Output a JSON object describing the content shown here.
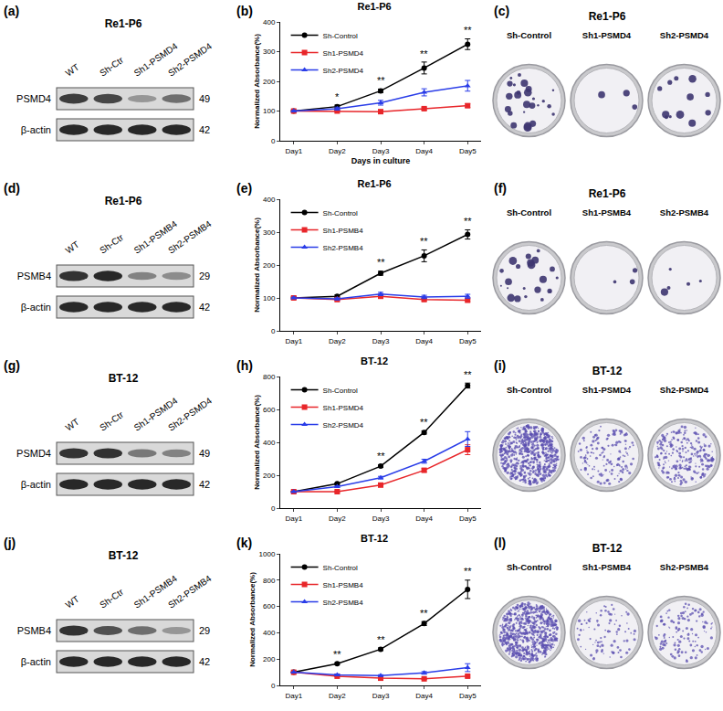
{
  "chart_data": [
    {
      "type": "line",
      "panel_label": "(b)",
      "title": "Re1-P6",
      "xlabel": "Days in culture",
      "ylabel": "Normalized Absorbance(%)",
      "categories": [
        "Day1",
        "Day2",
        "Day3",
        "Day4",
        "Day5"
      ],
      "series": [
        {
          "name": "Sh-Control",
          "color": "#000000",
          "marker": "circle",
          "values": [
            100,
            115,
            168,
            245,
            325
          ],
          "error": [
            3,
            5,
            6,
            20,
            18
          ]
        },
        {
          "name": "Sh1-PSMD4",
          "color": "#e8262a",
          "marker": "square",
          "values": [
            100,
            100,
            98,
            108,
            118
          ],
          "error": [
            2,
            3,
            4,
            5,
            6
          ]
        },
        {
          "name": "Sh2-PSMD4",
          "color": "#2a3de8",
          "marker": "triangle-up",
          "values": [
            100,
            108,
            128,
            163,
            185
          ],
          "error": [
            2,
            5,
            8,
            12,
            18
          ]
        }
      ],
      "annotations": [
        {
          "x": "Day2",
          "text": "*"
        },
        {
          "x": "Day3",
          "text": "**"
        },
        {
          "x": "Day4",
          "text": "**"
        },
        {
          "x": "Day5",
          "text": "**"
        }
      ],
      "ylim": [
        0,
        400
      ],
      "yticks": [
        0,
        100,
        200,
        300,
        400
      ],
      "grid": false,
      "legend": "top-left"
    },
    {
      "type": "line",
      "panel_label": "(e)",
      "title": "Re1-P6",
      "ylabel": "Normalized Absorbance(%)",
      "categories": [
        "Day1",
        "Day2",
        "Day3",
        "Day4",
        "Day5"
      ],
      "series": [
        {
          "name": "Sh-Control",
          "color": "#000000",
          "marker": "circle",
          "values": [
            100,
            105,
            175,
            228,
            293
          ],
          "error": [
            3,
            4,
            6,
            18,
            14
          ]
        },
        {
          "name": "Sh1-PSMB4",
          "color": "#e8262a",
          "marker": "square",
          "values": [
            100,
            95,
            105,
            95,
            93
          ],
          "error": [
            2,
            3,
            4,
            4,
            4
          ]
        },
        {
          "name": "Sh2-PSMB4",
          "color": "#2a3de8",
          "marker": "triangle-up",
          "values": [
            100,
            97,
            112,
            103,
            105
          ],
          "error": [
            2,
            3,
            5,
            5,
            6
          ]
        }
      ],
      "annotations": [
        {
          "x": "Day3",
          "text": "**"
        },
        {
          "x": "Day4",
          "text": "**"
        },
        {
          "x": "Day5",
          "text": "**"
        }
      ],
      "ylim": [
        0,
        400
      ],
      "yticks": [
        0,
        100,
        200,
        300,
        400
      ],
      "grid": false,
      "legend": "top-left"
    },
    {
      "type": "line",
      "panel_label": "(h)",
      "title": "BT-12",
      "ylabel": "Normalized Absorbance(%)",
      "categories": [
        "Day1",
        "Day2",
        "Day3",
        "Day4",
        "Day5"
      ],
      "series": [
        {
          "name": "Sh-Control",
          "color": "#000000",
          "marker": "circle",
          "values": [
            100,
            148,
            255,
            460,
            745
          ],
          "error": [
            3,
            5,
            8,
            10,
            15
          ]
        },
        {
          "name": "Sh1-PSMD4",
          "color": "#e8262a",
          "marker": "square",
          "values": [
            100,
            100,
            140,
            230,
            355
          ],
          "error": [
            2,
            4,
            6,
            10,
            30
          ]
        },
        {
          "name": "Sh2-PSMD4",
          "color": "#2a3de8",
          "marker": "triangle-up",
          "values": [
            100,
            130,
            185,
            285,
            420
          ],
          "error": [
            2,
            5,
            8,
            12,
            45
          ]
        }
      ],
      "annotations": [
        {
          "x": "Day3",
          "text": "**"
        },
        {
          "x": "Day4",
          "text": "**"
        },
        {
          "x": "Day5",
          "text": "**"
        }
      ],
      "ylim": [
        0,
        800
      ],
      "yticks": [
        0,
        200,
        400,
        600,
        800
      ],
      "grid": false,
      "legend": "top-left"
    },
    {
      "type": "line",
      "panel_label": "(k)",
      "title": "BT-12",
      "ylabel": "Normalized Absorbance(%)",
      "categories": [
        "Day1",
        "Day2",
        "Day3",
        "Day4",
        "Day5"
      ],
      "series": [
        {
          "name": "Sh-Control",
          "color": "#000000",
          "marker": "circle",
          "values": [
            100,
            165,
            275,
            470,
            730
          ],
          "error": [
            3,
            8,
            10,
            15,
            70
          ]
        },
        {
          "name": "Sh1-PSMB4",
          "color": "#e8262a",
          "marker": "square",
          "values": [
            100,
            70,
            55,
            50,
            70
          ],
          "error": [
            2,
            5,
            5,
            5,
            8
          ]
        },
        {
          "name": "Sh2-PSMB4",
          "color": "#2a3de8",
          "marker": "triangle-up",
          "values": [
            100,
            80,
            75,
            95,
            135
          ],
          "error": [
            2,
            6,
            6,
            10,
            30
          ]
        }
      ],
      "annotations": [
        {
          "x": "Day2",
          "text": "**"
        },
        {
          "x": "Day3",
          "text": "**"
        },
        {
          "x": "Day4",
          "text": "**"
        },
        {
          "x": "Day5",
          "text": "**"
        }
      ],
      "ylim": [
        0,
        1000
      ],
      "yticks": [
        0,
        200,
        400,
        600,
        800,
        1000
      ],
      "grid": false,
      "legend": "top-left"
    }
  ],
  "blots": [
    {
      "panel_label": "(a)",
      "title": "Re1-P6",
      "lanes": [
        "WT",
        "Sh-Ctr",
        "Sh1-PSMD4",
        "Sh2-PSMD4"
      ],
      "rows": [
        {
          "protein": "PSMD4",
          "kda": 49,
          "intensity": [
            0.8,
            0.75,
            0.35,
            0.55
          ]
        },
        {
          "protein": "β-actin",
          "kda": 42,
          "intensity": [
            0.9,
            0.9,
            0.9,
            0.9
          ]
        }
      ]
    },
    {
      "panel_label": "(d)",
      "title": "Re1-P6",
      "lanes": [
        "WT",
        "Sh-Ctr",
        "Sh1-PSMB4",
        "Sh2-PSMB4"
      ],
      "rows": [
        {
          "protein": "PSMB4",
          "kda": 29,
          "intensity": [
            0.85,
            0.9,
            0.45,
            0.4
          ]
        },
        {
          "protein": "β-actin",
          "kda": 42,
          "intensity": [
            0.9,
            0.9,
            0.9,
            0.9
          ]
        }
      ]
    },
    {
      "panel_label": "(g)",
      "title": "BT-12",
      "lanes": [
        "WT",
        "Sh-Ctr",
        "Sh1-PSMD4",
        "Sh2-PSMD4"
      ],
      "rows": [
        {
          "protein": "PSMD4",
          "kda": 49,
          "intensity": [
            0.85,
            0.85,
            0.5,
            0.45
          ]
        },
        {
          "protein": "β-actin",
          "kda": 42,
          "intensity": [
            0.9,
            0.9,
            0.9,
            0.9
          ]
        }
      ]
    },
    {
      "panel_label": "(j)",
      "title": "BT-12",
      "lanes": [
        "WT",
        "Sh-Ctr",
        "Sh1-PSMB4",
        "Sh2-PSMB4"
      ],
      "rows": [
        {
          "protein": "PSMB4",
          "kda": 29,
          "intensity": [
            0.85,
            0.7,
            0.55,
            0.35
          ]
        },
        {
          "protein": "β-actin",
          "kda": 42,
          "intensity": [
            0.9,
            0.9,
            0.9,
            0.9
          ]
        }
      ]
    }
  ],
  "colony_assays": [
    {
      "panel_label": "(c)",
      "title": "Re1-P6",
      "plates": [
        {
          "label": "Sh-Control",
          "colonies": 25
        },
        {
          "label": "Sh1-PSMD4",
          "colonies": 3
        },
        {
          "label": "Sh2-PSMD4",
          "colonies": 12
        }
      ]
    },
    {
      "panel_label": "(f)",
      "title": "Re1-P6",
      "plates": [
        {
          "label": "Sh-Control",
          "colonies": 22
        },
        {
          "label": "Sh1-PSMB4",
          "colonies": 3
        },
        {
          "label": "Sh2-PSMB4",
          "colonies": 5
        }
      ]
    },
    {
      "panel_label": "(i)",
      "title": "BT-12",
      "plates": [
        {
          "label": "Sh-Control",
          "colonies": 700
        },
        {
          "label": "Sh1-PSMD4",
          "colonies": 150
        },
        {
          "label": "Sh2-PSMD4",
          "colonies": 250
        }
      ]
    },
    {
      "panel_label": "(l)",
      "title": "BT-12",
      "plates": [
        {
          "label": "Sh-Control",
          "colonies": 700
        },
        {
          "label": "Sh1-PSMB4",
          "colonies": 90
        },
        {
          "label": "Sh2-PSMB4",
          "colonies": 120
        }
      ]
    }
  ]
}
